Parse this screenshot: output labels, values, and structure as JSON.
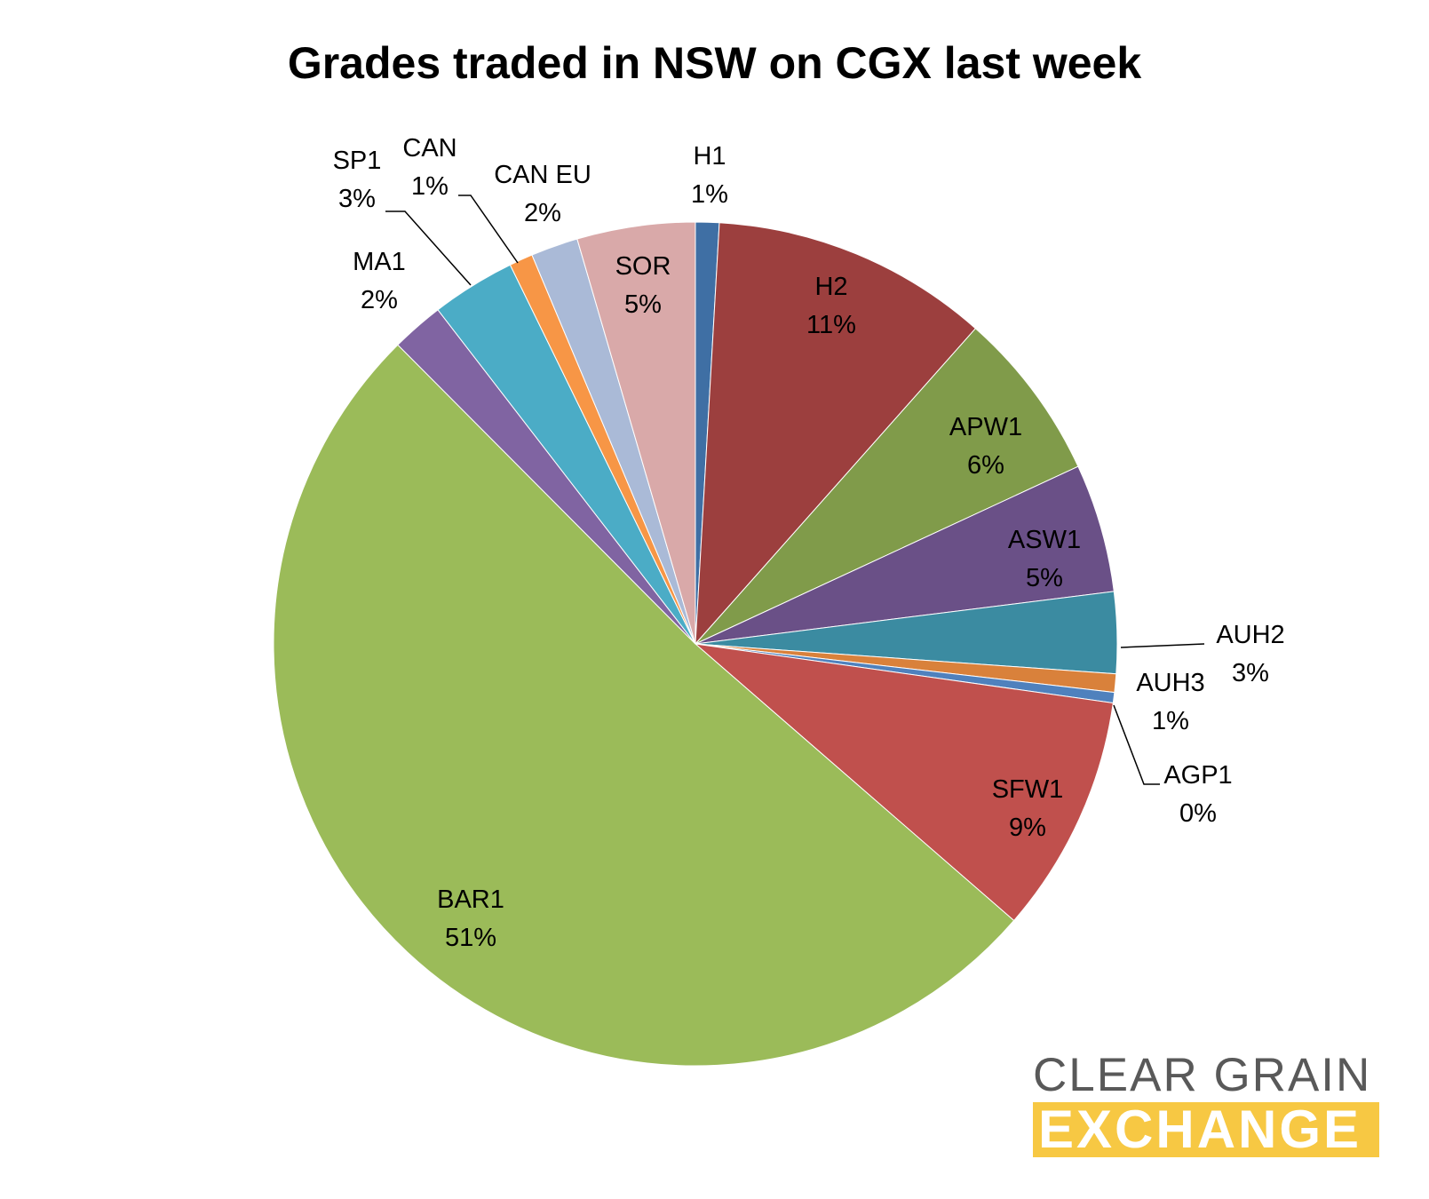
{
  "chart_data": {
    "type": "pie",
    "title": "Grades traded in NSW on CGX last week",
    "slices": [
      {
        "name": "H1",
        "percent_label": "1%",
        "value": 0.9,
        "color": "#3f6fa4"
      },
      {
        "name": "H2",
        "percent_label": "11%",
        "value": 10.6,
        "color": "#9c3f3e"
      },
      {
        "name": "APW1",
        "percent_label": "6%",
        "value": 6.5,
        "color": "#809b4a"
      },
      {
        "name": "ASW1",
        "percent_label": "5%",
        "value": 4.9,
        "color": "#6a5087"
      },
      {
        "name": "AUH2",
        "percent_label": "3%",
        "value": 3.1,
        "color": "#3b8ba1"
      },
      {
        "name": "AUH3",
        "percent_label": "1%",
        "value": 0.7,
        "color": "#d9813b"
      },
      {
        "name": "AGP1",
        "percent_label": "0%",
        "value": 0.4,
        "color": "#4f81bd"
      },
      {
        "name": "SFW1",
        "percent_label": "9%",
        "value": 9.1,
        "color": "#c0504d"
      },
      {
        "name": "BAR1",
        "percent_label": "51%",
        "value": 50.9,
        "color": "#9bbb59"
      },
      {
        "name": "MA1",
        "percent_label": "2%",
        "value": 2.0,
        "color": "#8064a2"
      },
      {
        "name": "SP1",
        "percent_label": "3%",
        "value": 3.2,
        "color": "#4bacc6"
      },
      {
        "name": "CAN",
        "percent_label": "1%",
        "value": 0.9,
        "color": "#f79646"
      },
      {
        "name": "CAN EU",
        "percent_label": "2%",
        "value": 1.8,
        "color": "#aabad7"
      },
      {
        "name": "SOR",
        "percent_label": "5%",
        "value": 4.5,
        "color": "#d9a9a9"
      }
    ]
  },
  "logo": {
    "line1": "CLEAR GRAIN",
    "line2": "EXCHANGE",
    "line1_color": "#595959",
    "line2_background": "#f7c843",
    "line2_text_color": "#ffffff"
  }
}
